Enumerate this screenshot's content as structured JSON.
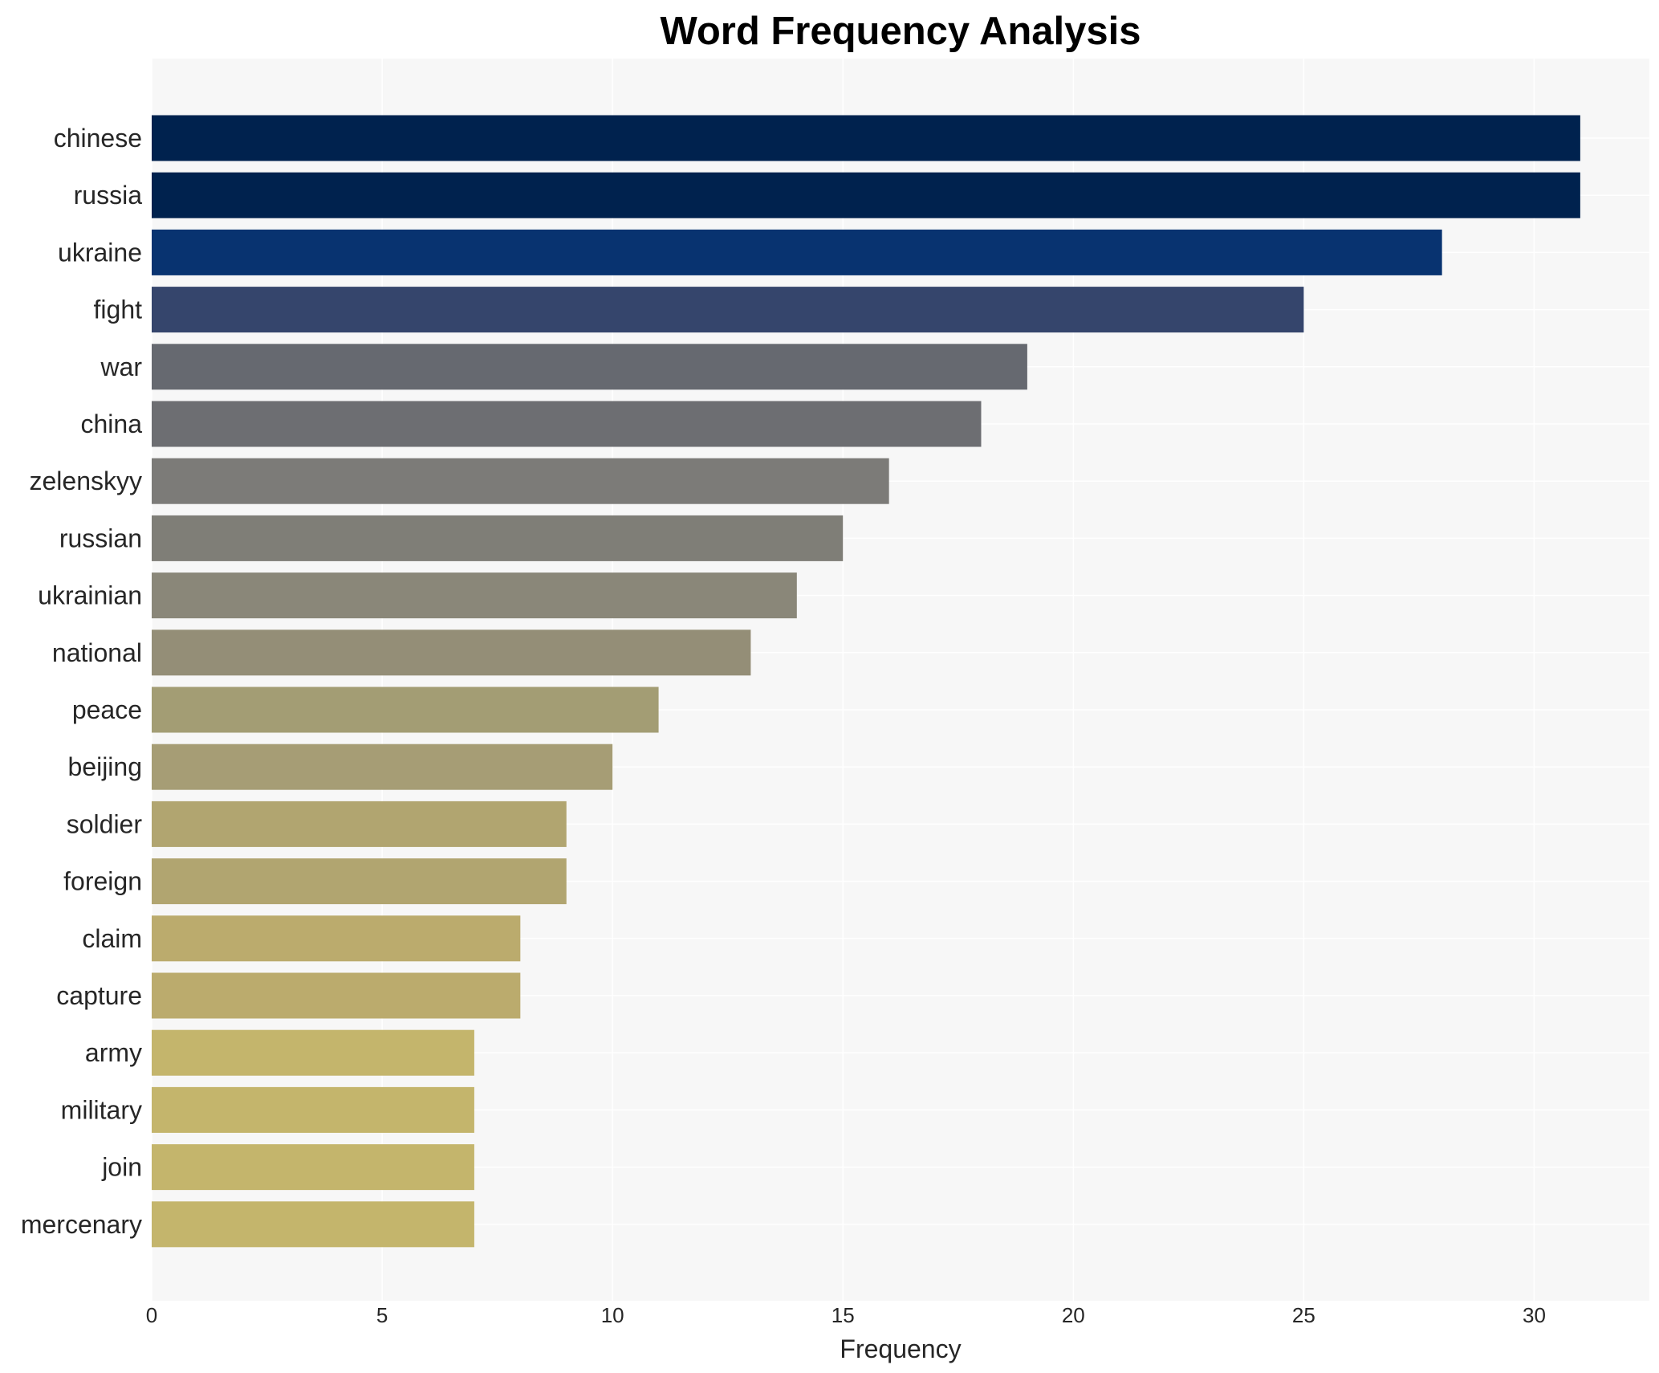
{
  "chart_data": {
    "type": "bar",
    "orientation": "horizontal",
    "title": "Word Frequency Analysis",
    "xlabel": "Frequency",
    "ylabel": "",
    "xlim": [
      0,
      32.5
    ],
    "xticks": [
      0,
      5,
      10,
      15,
      20,
      25,
      30
    ],
    "grid": true,
    "background_color": "#f7f7f7",
    "categories": [
      "chinese",
      "russia",
      "ukraine",
      "fight",
      "war",
      "china",
      "zelenskyy",
      "russian",
      "ukrainian",
      "national",
      "peace",
      "beijing",
      "soldier",
      "foreign",
      "claim",
      "capture",
      "army",
      "military",
      "join",
      "mercenary"
    ],
    "values": [
      31,
      31,
      28,
      25,
      19,
      18,
      16,
      15,
      14,
      13,
      11,
      10,
      9,
      9,
      8,
      8,
      7,
      7,
      7,
      7
    ],
    "colors": [
      "#00224e",
      "#00224e",
      "#083370",
      "#35456c",
      "#666970",
      "#6d6e72",
      "#7c7b78",
      "#7f7e77",
      "#8a8779",
      "#948e77",
      "#a39d74",
      "#a69d75",
      "#b1a570",
      "#b1a570",
      "#bbab6d",
      "#bbab6d",
      "#c4b56c",
      "#c4b56c",
      "#c4b56c",
      "#c4b56c"
    ]
  }
}
